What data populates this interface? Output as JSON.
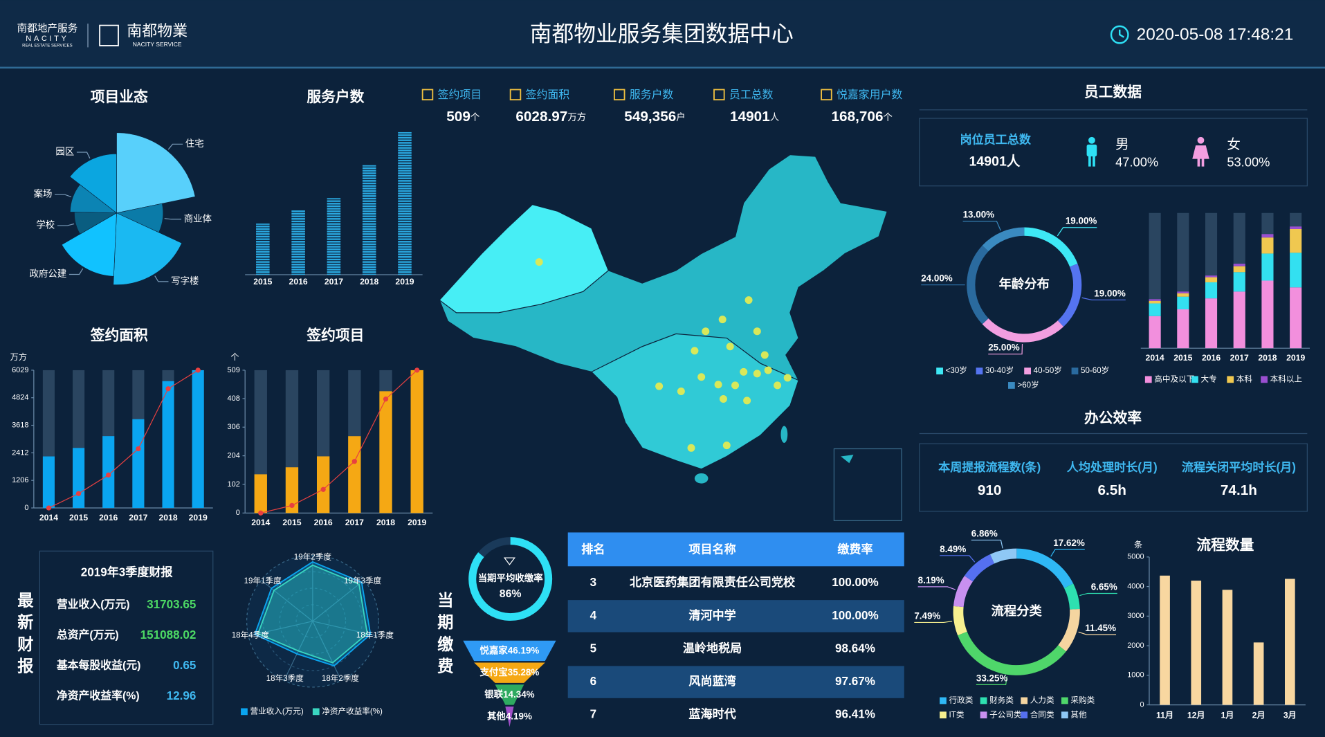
{
  "header": {
    "logo1_cn": "南都地产服务",
    "logo1_en": "NACITY",
    "logo1_sub": "REAL ESTATE SERVICES",
    "logo2_cn": "南都物業",
    "logo2_en": "NACITY SERVICE",
    "title": "南都物业服务集团数据中心",
    "datetime": "2020-05-08 17:48:21"
  },
  "kpis": [
    {
      "label": "签约项目",
      "value": "509",
      "unit": "个"
    },
    {
      "label": "签约面积",
      "value": "6028.97",
      "unit": "万方"
    },
    {
      "label": "服务户数",
      "value": "549,356",
      "unit": "户"
    },
    {
      "label": "员工总数",
      "value": "14901",
      "unit": "人"
    },
    {
      "label": "悦嘉家用户数",
      "value": "168,706",
      "unit": "个"
    }
  ],
  "chart_data": [
    {
      "type": "pie",
      "rose": true,
      "title": "项目业态",
      "categories": [
        "住宅",
        "商业体",
        "写字楼",
        "政府公建",
        "学校",
        "案场",
        "园区"
      ],
      "values": [
        30,
        14,
        26,
        22,
        12,
        14,
        20
      ],
      "colors": [
        "#58d0fb",
        "#0b7ba8",
        "#1ab9f2",
        "#11c2ff",
        "#0a5d80",
        "#0c84b4",
        "#0ba6e0"
      ]
    },
    {
      "type": "bar",
      "title": "服务户数",
      "categories": [
        "2015",
        "2016",
        "2017",
        "2018",
        "2019"
      ],
      "series": [
        {
          "color": "#2aa8e0",
          "values": [
            197000,
            248000,
            295000,
            422000,
            549356
          ]
        }
      ],
      "pattern": "stripes",
      "ylim": [
        0,
        570000
      ]
    },
    {
      "type": "bar",
      "title": "签约面积",
      "y_label": "万方",
      "categories": [
        "2014",
        "2015",
        "2016",
        "2017",
        "2018",
        "2019"
      ],
      "series": [
        {
          "color": "#0aa5f0",
          "values": [
            2256,
            2627,
            3145,
            3885,
            5550,
            6028.97
          ]
        },
        {
          "type": "line",
          "color": "#e84040",
          "values": [
            0,
            629,
            1443,
            2590,
            5217,
            6028.97
          ]
        }
      ],
      "background": "#2a4560",
      "ylim": [
        0,
        6029
      ],
      "yticks": [
        0,
        1206,
        2412,
        3618,
        4824,
        6029
      ]
    },
    {
      "type": "bar",
      "title": "签约项目",
      "y_label": "个",
      "categories": [
        "2014",
        "2015",
        "2016",
        "2017",
        "2018",
        "2019"
      ],
      "series": [
        {
          "color": "#f5a814",
          "values": [
            138,
            163,
            202,
            274,
            434,
            509
          ]
        },
        {
          "type": "line",
          "color": "#e84040",
          "values": [
            0,
            27,
            84,
            184,
            406,
            509
          ]
        }
      ],
      "background": "#2a4560",
      "ylim": [
        0,
        509
      ],
      "yticks": [
        0,
        102,
        204,
        306,
        408,
        509
      ]
    },
    {
      "type": "radar",
      "indicators": [
        "19年2季度",
        "19年3季度",
        "18年1季度",
        "18年2季度",
        "18年3季度",
        "18年4季度",
        "19年1季度"
      ],
      "series": [
        {
          "name": "营业收入(万元)",
          "color": "#0aa5f0",
          "values": [
            0.9,
            0.95,
            0.9,
            0.75,
            0.55,
            0.9,
            0.8
          ]
        },
        {
          "name": "净资产收益率(%)",
          "color": "#3ad6c0",
          "values": [
            0.85,
            0.9,
            0.85,
            0.7,
            0.5,
            0.85,
            0.75
          ]
        }
      ],
      "ylim": [
        0,
        1
      ]
    },
    {
      "type": "gauge",
      "title": "当期平均收缴率",
      "values": [
        86
      ],
      "value_labels": [
        "86%"
      ],
      "ylim": [
        0,
        100
      ],
      "color": "#2ee0f5"
    },
    {
      "type": "funnel",
      "categories": [
        "悦嘉家",
        "支付宝",
        "银联",
        "其他"
      ],
      "values": [
        46.19,
        35.28,
        14.34,
        4.19
      ],
      "value_labels": [
        "46.19%",
        "35.28%",
        "14.34%",
        "4.19%"
      ],
      "colors": [
        "#2f9af5",
        "#f5a814",
        "#2eaa60",
        "#a050c8"
      ]
    },
    {
      "type": "pie",
      "center_title": "年龄分布",
      "categories": [
        "<30岁",
        "30-40岁",
        "40-50岁",
        "50-60岁",
        ">60岁"
      ],
      "values": [
        19,
        19,
        25,
        24,
        13
      ],
      "value_labels": [
        "19.00%",
        "19.00%",
        "25.00%",
        "24.00%",
        "13.00%"
      ],
      "colors": [
        "#3ee8f5",
        "#5574f0",
        "#f29ee0",
        "#2a6a9e",
        "#3a8ac0"
      ]
    },
    {
      "type": "bar",
      "stacked": true,
      "categories": [
        "2014",
        "2015",
        "2016",
        "2017",
        "2018",
        "2019"
      ],
      "series": [
        {
          "name": "高中及以下",
          "color": "#f28fdd",
          "values": [
            38,
            46,
            59,
            67,
            80,
            72
          ]
        },
        {
          "name": "大专",
          "color": "#33e0f0",
          "values": [
            15,
            15,
            19,
            23,
            32,
            41
          ]
        },
        {
          "name": "本科",
          "color": "#f0c850",
          "values": [
            3,
            4,
            6,
            7,
            19,
            28
          ]
        },
        {
          "name": "本科以上",
          "color": "#9a4fd0",
          "values": [
            2,
            2,
            2,
            3,
            4,
            3
          ]
        }
      ],
      "background": "#2a4560",
      "ylim": [
        0,
        160
      ]
    },
    {
      "type": "pie",
      "center_title": "流程分类",
      "categories": [
        "行政类",
        "财务类",
        "人力类",
        "采购类",
        "IT类",
        "子公司类",
        "合同类",
        "其他"
      ],
      "values": [
        17.62,
        6.65,
        11.45,
        33.25,
        7.49,
        8.19,
        8.49,
        6.86
      ],
      "value_labels": [
        "17.62%",
        "6.65%",
        "11.45%",
        "33.25%",
        "7.49%",
        "8.19%",
        "8.49%",
        "6.86%"
      ],
      "colors": [
        "#2fb8f5",
        "#2ee0b0",
        "#f5d5a0",
        "#4fd66a",
        "#f7f08f",
        "#c890f0",
        "#5570f0",
        "#8fc8f5"
      ]
    },
    {
      "type": "bar",
      "title": "流程数量",
      "y_label": "条",
      "categories": [
        "11月",
        "12月",
        "1月",
        "2月",
        "3月"
      ],
      "series": [
        {
          "color": "#f8d7a0",
          "values": [
            4370,
            4200,
            3890,
            2110,
            4260
          ]
        }
      ],
      "ylim": [
        0,
        5000
      ],
      "yticks": [
        0,
        1000,
        2000,
        3000,
        4000,
        5000
      ]
    }
  ],
  "finance": {
    "side_title": "最新财报",
    "title": "2019年3季度财报",
    "rows": [
      [
        "营业收入(万元)",
        "31703.65"
      ],
      [
        "总资产(万元)",
        "151088.02"
      ],
      [
        "基本每股收益(元)",
        "0.65"
      ],
      [
        "净资产收益率(%)",
        "12.96"
      ]
    ]
  },
  "payment": {
    "side_title": "当期缴费"
  },
  "table": {
    "headers": [
      "排名",
      "项目名称",
      "缴费率"
    ],
    "rows": [
      [
        "3",
        "北京医药集团有限责任公司党校",
        "100.00%"
      ],
      [
        "4",
        "清河中学",
        "100.00%"
      ],
      [
        "5",
        "温岭地税局",
        "98.64%"
      ],
      [
        "6",
        "风尚蓝湾",
        "97.67%"
      ],
      [
        "7",
        "蓝海时代",
        "96.41%"
      ]
    ]
  },
  "staff": {
    "title": "员工数据",
    "total_label": "岗位员工总数",
    "total": "14901人",
    "male_label": "男",
    "male": "47.00%",
    "female_label": "女",
    "female": "53.00%"
  },
  "office": {
    "title": "办公效率",
    "items": [
      {
        "label": "本周提报流程数(条)",
        "value": "910"
      },
      {
        "label": "人均处理时长(月)",
        "value": "6.5h"
      },
      {
        "label": "流程关闭平均时长(月)",
        "value": "74.1h"
      }
    ]
  }
}
